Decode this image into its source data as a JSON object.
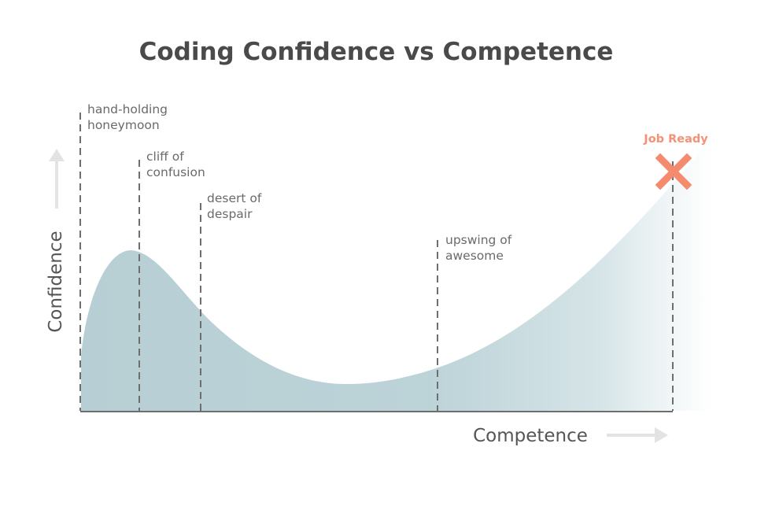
{
  "title": "Coding Confidence vs Competence",
  "y_axis_label": "Confidence",
  "x_axis_label": "Competence",
  "phases": [
    {
      "line1": "hand-holding",
      "line2": "honeymoon"
    },
    {
      "line1": "cliff of",
      "line2": "confusion"
    },
    {
      "line1": "desert of",
      "line2": "despair"
    },
    {
      "line1": "upswing of",
      "line2": "awesome"
    }
  ],
  "goal": {
    "label": "Job Ready",
    "marker": "x-icon"
  },
  "colors": {
    "curve_fill": "#b7cfd4",
    "goal_accent": "#f58b6e",
    "arrow": "#e3e3e3",
    "text": "#4a4a4a"
  }
}
